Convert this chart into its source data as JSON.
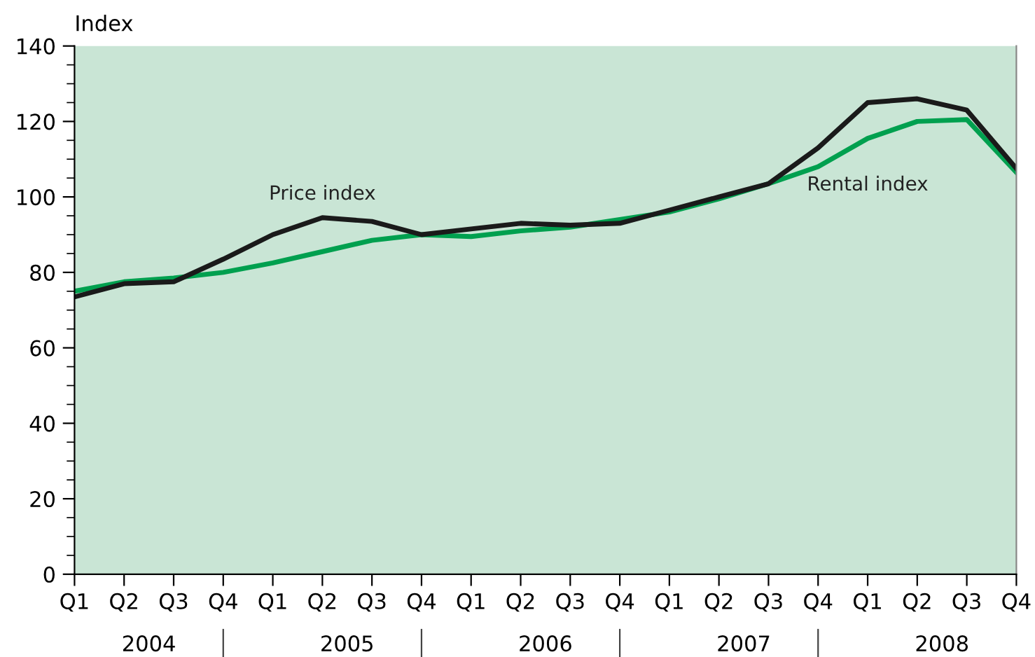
{
  "chart_data": {
    "type": "line",
    "ylabel": "Index",
    "categories": [
      "Q1",
      "Q2",
      "Q3",
      "Q4",
      "Q1",
      "Q2",
      "Q3",
      "Q4",
      "Q1",
      "Q2",
      "Q3",
      "Q4",
      "Q1",
      "Q2",
      "Q3",
      "Q4",
      "Q1",
      "Q2",
      "Q3",
      "Q4"
    ],
    "series": [
      {
        "name": "Rental index",
        "color": "#00a04f",
        "values": [
          75,
          77.5,
          78.5,
          80,
          82.5,
          85.5,
          88.5,
          90,
          89.5,
          91,
          92,
          94,
          96,
          99.5,
          103.5,
          108,
          115.5,
          120,
          120.5,
          106.5
        ]
      },
      {
        "name": "Price index",
        "color": "#1a1a1a",
        "values": [
          73.5,
          77,
          77.5,
          83.5,
          90,
          94.5,
          93.5,
          90,
          91.5,
          93,
          92.5,
          93,
          96.5,
          100,
          103.5,
          113,
          125,
          126,
          123,
          107.5
        ]
      }
    ],
    "annotations": [
      "2004",
      "2005",
      "2006",
      "2007",
      "2008"
    ],
    "ylim": [
      0,
      140
    ],
    "yticks": [
      0,
      20,
      40,
      60,
      80,
      100,
      120,
      140
    ],
    "grid": false,
    "legend": false,
    "marker": "none",
    "line_style": "solid"
  }
}
